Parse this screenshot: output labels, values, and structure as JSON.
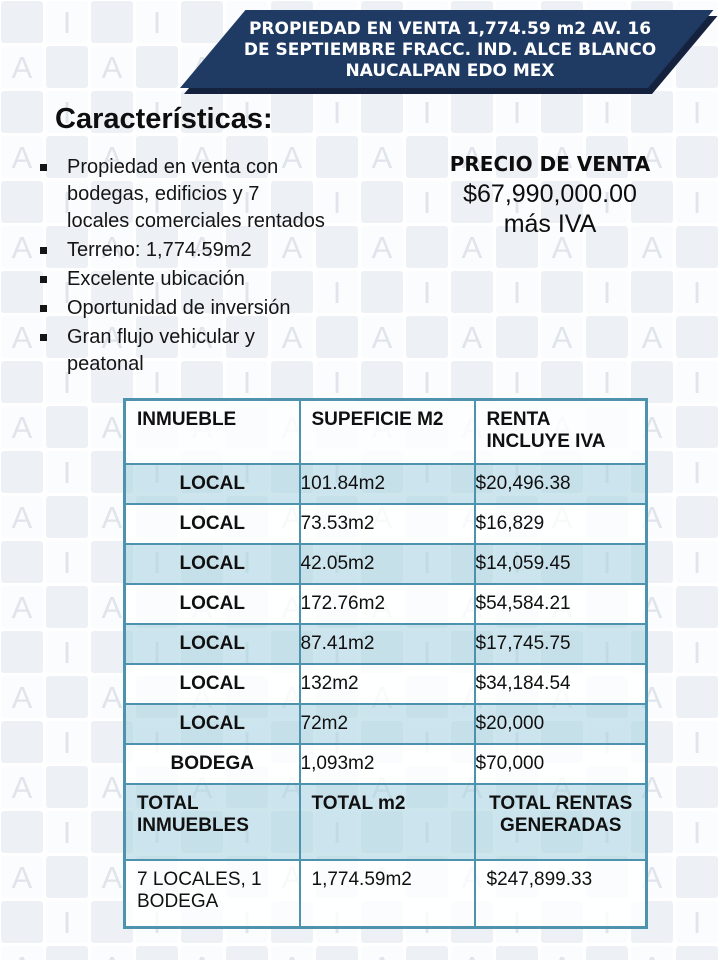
{
  "banner": {
    "title": "PROPIEDAD EN VENTA 1,774.59 m2  AV. 16\nDE SEPTIEMBRE FRACC. IND. ALCE BLANCO\nNAUCALPAN EDO MEX"
  },
  "caracteristicas": {
    "heading": "Características:",
    "bullets": [
      "Propiedad en venta con bodegas, edificios y 7 locales comerciales rentados",
      "Terreno: 1,774.59m2",
      "Excelente ubicación",
      "Oportunidad de inversión",
      "Gran flujo vehicular y peatonal"
    ]
  },
  "precio": {
    "label": "PRECIO DE VENTA",
    "amount": "$67,990,000.00",
    "iva": "más IVA"
  },
  "table": {
    "headers": [
      "INMUEBLE",
      "SUPEFICIE M2",
      "RENTA INCLUYE IVA"
    ],
    "rows": [
      [
        "LOCAL",
        "101.84m2",
        "$20,496.38"
      ],
      [
        "LOCAL",
        "73.53m2",
        "$16,829"
      ],
      [
        "LOCAL",
        "42.05m2",
        "$14,059.45"
      ],
      [
        "LOCAL",
        "172.76m2",
        "$54,584.21"
      ],
      [
        "LOCAL",
        "87.41m2",
        "$17,745.75"
      ],
      [
        "LOCAL",
        "132m2",
        "$34,184.54"
      ],
      [
        "LOCAL",
        "72m2",
        "$20,000"
      ],
      [
        "BODEGA",
        "1,093m2",
        "$70,000"
      ]
    ],
    "totals_header": [
      "TOTAL INMUEBLES",
      "TOTAL m2",
      "TOTAL RENTAS GENERADAS"
    ],
    "totals_row": [
      "7 LOCALES, 1 BODEGA",
      "1,774.59m2",
      "$247,899.33"
    ]
  },
  "watermark": {
    "letters": [
      "I",
      "A"
    ]
  },
  "colors": {
    "banner_navy": "#1f3a63",
    "banner_shadow": "#15223e",
    "table_border": "#4e93ad",
    "row_blue": "rgba(175,213,226,0.62)",
    "row_white": "rgba(255,255,255,0.78)",
    "header_bg": "rgba(253,254,255,0.85)",
    "tile_plain": "#edf1f6",
    "tile_letter": "rgba(251,252,254,0.95)",
    "wm_letter": "#e0e4eb"
  }
}
